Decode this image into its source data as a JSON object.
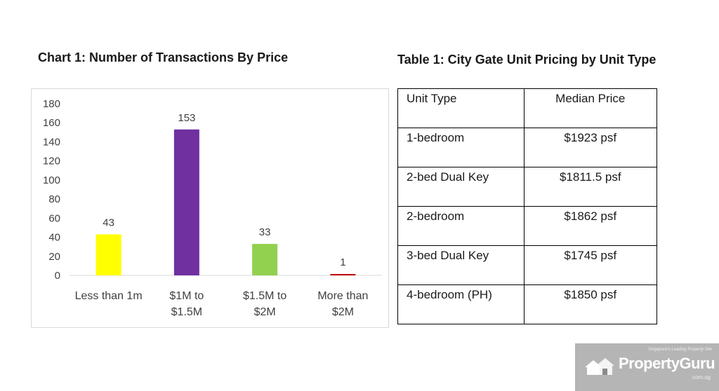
{
  "chart_title": "Chart 1: Number of Transactions By Price",
  "table_title": "Table 1: City Gate Unit Pricing by Unit Type",
  "chart_data": {
    "type": "bar",
    "title": "Chart 1: Number of Transactions By Price",
    "xlabel": "",
    "ylabel": "",
    "categories": [
      "Less than 1m",
      "$1M to $1.5M",
      "$1.5M to $2M",
      "More than $2M"
    ],
    "category_lines": [
      [
        "Less than 1m"
      ],
      [
        "$1M to",
        "$1.5M"
      ],
      [
        "$1.5M to",
        "$2M"
      ],
      [
        "More than",
        "$2M"
      ]
    ],
    "values": [
      43,
      153,
      33,
      1
    ],
    "bar_colors": [
      "#ffff00",
      "#7030a0",
      "#92d050",
      "#c00000"
    ],
    "ylim": [
      0,
      180
    ],
    "yticks": [
      0,
      20,
      40,
      60,
      80,
      100,
      120,
      140,
      160,
      180
    ],
    "grid": false,
    "legend": "none"
  },
  "table": {
    "headers": [
      "Unit Type",
      "Median Price"
    ],
    "rows": [
      [
        "1-bedroom",
        "$1923 psf"
      ],
      [
        "2-bed Dual Key",
        "$1811.5 psf"
      ],
      [
        "2-bedroom",
        "$1862 psf"
      ],
      [
        "3-bed Dual Key",
        "$1745 psf"
      ],
      [
        "4-bedroom (PH)",
        "$1850 psf"
      ]
    ]
  },
  "watermark": {
    "tagline": "Singapore's Leading Property Site",
    "brand": "PropertyGuru",
    "domain": ".com.sg",
    "icon": "house-icon",
    "background": "#8a8a8a"
  }
}
